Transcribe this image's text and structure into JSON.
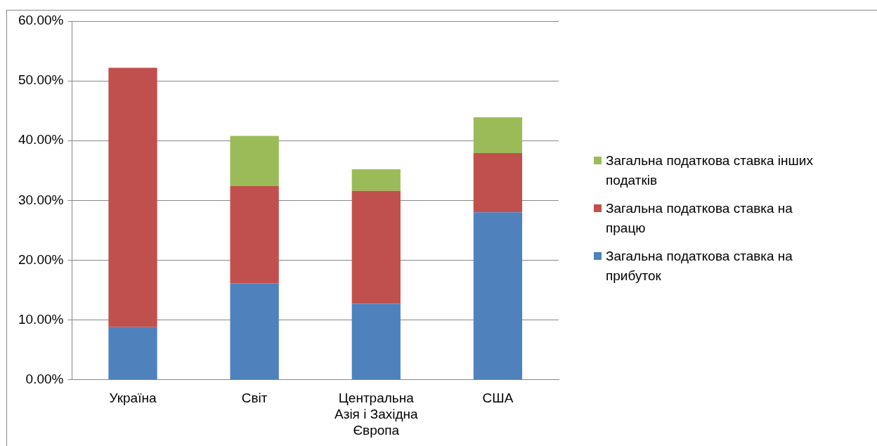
{
  "chart_data": {
    "type": "bar",
    "stacked": true,
    "categories": [
      "Україна",
      "Світ",
      "Центральна Азія і Західна Європа",
      "США"
    ],
    "series": [
      {
        "name": "Загальна податкова ставка на прибуток",
        "color": "#4f81bd",
        "values": [
          8.8,
          16.1,
          12.7,
          28.0
        ]
      },
      {
        "name": "Загальна податкова ставка на працю",
        "color": "#c0504d",
        "values": [
          43.4,
          16.3,
          18.9,
          9.9
        ]
      },
      {
        "name": "Загальна податкова ставка інших податків",
        "color": "#9bbb59",
        "values": [
          null,
          8.4,
          3.6,
          6.0
        ]
      }
    ],
    "ylim": [
      0,
      60
    ],
    "yticks": [
      {
        "value": 0,
        "label": "0.00%"
      },
      {
        "value": 10,
        "label": "10.00%"
      },
      {
        "value": 20,
        "label": "20.00%"
      },
      {
        "value": 30,
        "label": "30.00%"
      },
      {
        "value": 40,
        "label": "40.00%"
      },
      {
        "value": 50,
        "label": "50.00%"
      },
      {
        "value": 60,
        "label": "60.00%"
      }
    ],
    "grid": "y",
    "legend": "right"
  }
}
